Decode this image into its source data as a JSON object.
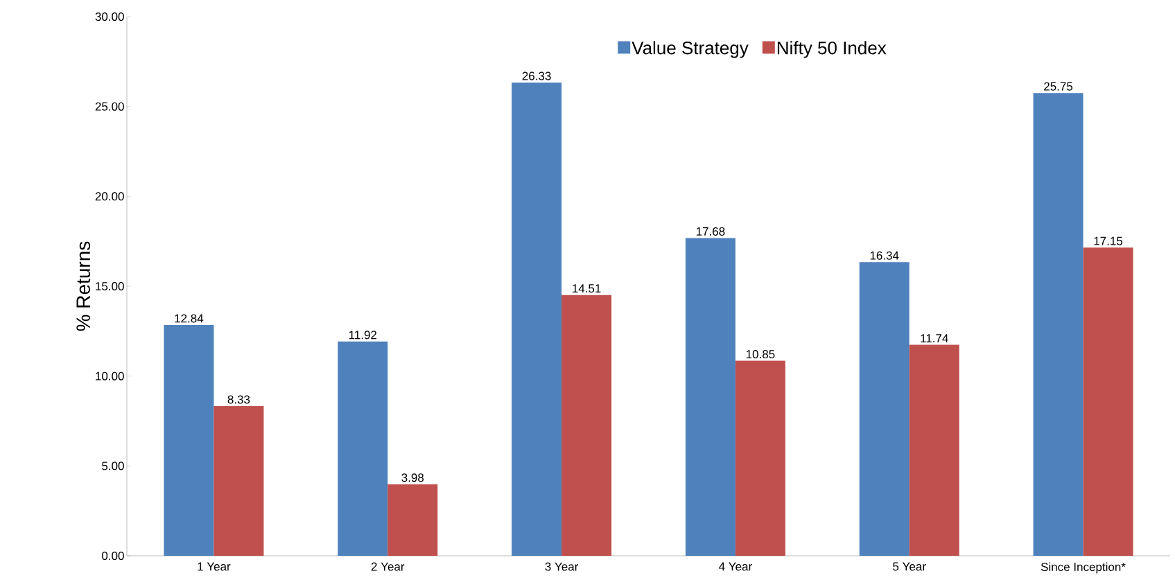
{
  "chart_data": {
    "type": "bar",
    "ylabel": "% Returns",
    "categories": [
      "1 Year",
      "2 Year",
      "3 Year",
      "4 Year",
      "5 Year",
      "Since Inception*"
    ],
    "series": [
      {
        "name": "Value Strategy",
        "color": "#4f81bd",
        "values": [
          12.84,
          11.92,
          26.33,
          17.68,
          16.34,
          25.75
        ]
      },
      {
        "name": "Nifty 50 Index",
        "color": "#c0504d",
        "values": [
          8.33,
          3.98,
          14.51,
          10.85,
          11.74,
          17.15
        ]
      }
    ],
    "ylim": [
      0,
      30
    ],
    "yticks": [
      {
        "value": 0,
        "label": "0.00"
      },
      {
        "value": 5,
        "label": "5.00"
      },
      {
        "value": 10,
        "label": "10.00"
      },
      {
        "value": 15,
        "label": "15.00"
      },
      {
        "value": 20,
        "label": "20.00"
      },
      {
        "value": 25,
        "label": "25.00"
      },
      {
        "value": 30,
        "label": "30.00"
      }
    ],
    "data_labels": true,
    "grid": false,
    "legend": "top"
  }
}
